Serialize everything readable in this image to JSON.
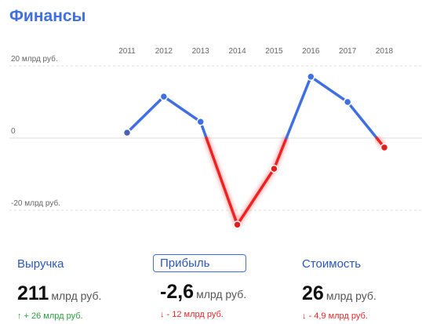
{
  "page": {
    "title": "Финансы"
  },
  "chart_data": {
    "type": "line",
    "title": "",
    "x": [
      "2011",
      "2012",
      "2013",
      "2014",
      "2015",
      "2016",
      "2017",
      "2018"
    ],
    "series": [
      {
        "values": [
          1.5,
          11.5,
          4.5,
          -24,
          -8.5,
          17,
          10,
          -2.6
        ]
      }
    ],
    "ylim": [
      -30,
      24
    ],
    "y_gridlines": [
      {
        "value": 20,
        "label": "20 млрд руб."
      },
      {
        "value": 0,
        "label": "0"
      },
      {
        "value": -20,
        "label": "-20 млрд руб."
      }
    ],
    "grid": true,
    "colors": {
      "positive": "#3f6fe0",
      "negative": "#ee2222",
      "grid": "#dddddd"
    }
  },
  "metrics": [
    {
      "label": "Выручка",
      "value": "211",
      "unit": "млрд руб.",
      "change": "+ 26 млрд руб.",
      "direction": "up",
      "selected": false
    },
    {
      "label": "Прибыль",
      "value": "-2,6",
      "unit": "млрд руб.",
      "change": "- 12 млрд руб.",
      "direction": "down",
      "selected": true
    },
    {
      "label": "Стоимость",
      "value": "26",
      "unit": "млрд руб.",
      "change": "- 4,9 млрд руб.",
      "direction": "down",
      "selected": false
    }
  ]
}
